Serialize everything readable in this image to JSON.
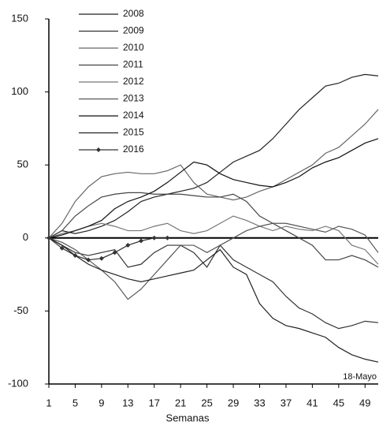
{
  "chart_data": {
    "type": "line",
    "x_label": "Semanas",
    "annotation": "18-Mayo",
    "x": [
      1,
      3,
      5,
      7,
      9,
      11,
      13,
      15,
      17,
      19,
      21,
      23,
      25,
      27,
      29,
      31,
      33,
      35,
      37,
      39,
      41,
      43,
      45,
      47,
      49,
      51
    ],
    "xlim": [
      1,
      51
    ],
    "xticks": [
      1,
      5,
      9,
      13,
      17,
      21,
      25,
      29,
      33,
      37,
      41,
      45,
      49
    ],
    "ylim": [
      -100,
      150
    ],
    "yticks": [
      -100,
      -50,
      0,
      50,
      100,
      150
    ],
    "grid": false,
    "legend": "upper left",
    "series": [
      {
        "name": "2008",
        "color": "#222",
        "values": [
          0,
          5,
          3,
          5,
          8,
          12,
          18,
          25,
          28,
          30,
          32,
          34,
          38,
          45,
          52,
          56,
          60,
          68,
          78,
          88,
          96,
          104,
          106,
          110,
          112,
          111
        ]
      },
      {
        "name": "2009",
        "color": "#333",
        "values": [
          0,
          -5,
          -10,
          -12,
          -10,
          -8,
          -20,
          -18,
          -10,
          -5,
          -5,
          -10,
          -20,
          -5,
          -15,
          -20,
          -25,
          -30,
          -40,
          -48,
          -52,
          -58,
          -62,
          -60,
          -57,
          -58
        ]
      },
      {
        "name": "2010",
        "color": "#666",
        "values": [
          0,
          10,
          25,
          35,
          42,
          44,
          45,
          44,
          44,
          46,
          50,
          38,
          30,
          28,
          26,
          28,
          32,
          35,
          40,
          45,
          50,
          58,
          62,
          70,
          78,
          88
        ]
      },
      {
        "name": "2011",
        "color": "#444",
        "values": [
          0,
          5,
          15,
          22,
          28,
          30,
          31,
          31,
          30,
          30,
          30,
          29,
          28,
          28,
          30,
          25,
          15,
          10,
          5,
          0,
          -5,
          -15,
          -15,
          -12,
          -15,
          -20
        ]
      },
      {
        "name": "2012",
        "color": "#777",
        "values": [
          0,
          3,
          5,
          8,
          10,
          8,
          5,
          5,
          8,
          10,
          5,
          3,
          5,
          10,
          15,
          12,
          8,
          5,
          8,
          6,
          5,
          8,
          5,
          -5,
          -8,
          -18
        ]
      },
      {
        "name": "2013",
        "color": "#555",
        "values": [
          0,
          -3,
          -8,
          -15,
          -22,
          -30,
          -42,
          -35,
          -25,
          -15,
          -5,
          -5,
          -10,
          -5,
          0,
          5,
          8,
          10,
          10,
          8,
          6,
          4,
          8,
          6,
          2,
          -10
        ]
      },
      {
        "name": "2014",
        "color": "#111",
        "values": [
          0,
          2,
          5,
          8,
          12,
          20,
          25,
          28,
          32,
          38,
          45,
          52,
          50,
          44,
          40,
          38,
          36,
          35,
          38,
          42,
          48,
          52,
          55,
          60,
          65,
          68
        ]
      },
      {
        "name": "2015",
        "color": "#222",
        "values": [
          0,
          -5,
          -12,
          -18,
          -22,
          -25,
          -28,
          -30,
          -28,
          -26,
          -24,
          -22,
          -15,
          -8,
          -20,
          -25,
          -45,
          -55,
          -60,
          -62,
          -65,
          -68,
          -75,
          -80,
          -83,
          -85
        ]
      },
      {
        "name": "2016",
        "color": "#333",
        "marker": "diamond",
        "values": [
          0,
          -7,
          -12,
          -15,
          -14,
          -10,
          -5,
          -2,
          0,
          0,
          null,
          null,
          null,
          null,
          null,
          null,
          null,
          null,
          null,
          null,
          null,
          null,
          null,
          null,
          null,
          null
        ]
      }
    ]
  }
}
